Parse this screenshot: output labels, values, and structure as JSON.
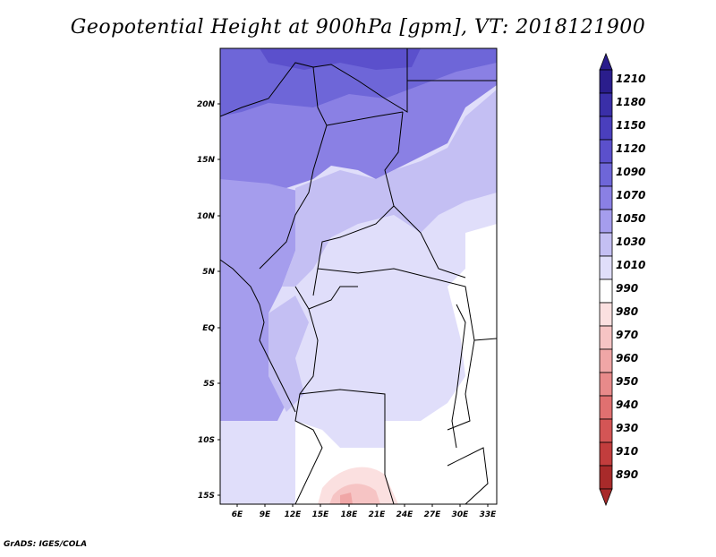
{
  "header": {
    "title": "Geopotential Height at 900hPa [gpm], VT: 2018121900"
  },
  "map": {
    "lat_labels": [
      "20N",
      "15N",
      "10N",
      "5N",
      "EQ",
      "5S",
      "10S",
      "15S"
    ],
    "lon_labels": [
      "6E",
      "9E",
      "12E",
      "15E",
      "18E",
      "21E",
      "24E",
      "27E",
      "30E",
      "33E"
    ]
  },
  "colorbar": {
    "levels": [
      "1210",
      "1180",
      "1150",
      "1120",
      "1090",
      "1070",
      "1050",
      "1030",
      "1010",
      "990",
      "980",
      "970",
      "960",
      "950",
      "940",
      "930",
      "910",
      "890"
    ],
    "colors": [
      "#2a1d8c",
      "#3a2fa8",
      "#4a3fbd",
      "#5b50cc",
      "#6e66d8",
      "#8a80e4",
      "#a59ded",
      "#c4bff3",
      "#e0defa",
      "#ffffff",
      "#fbe0e0",
      "#f6c4c4",
      "#f0a6a6",
      "#e88a8a",
      "#e07070",
      "#d45555",
      "#c23d3d",
      "#a82a2a"
    ]
  },
  "footer": {
    "credit": "GrADS: IGES/COLA"
  }
}
